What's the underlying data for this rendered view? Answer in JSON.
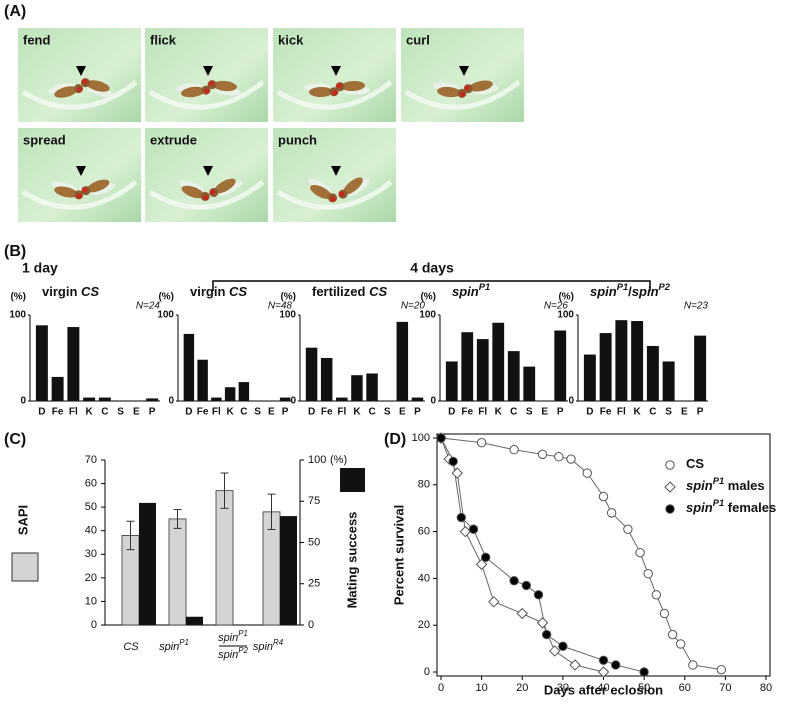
{
  "panel_a": {
    "label": "(A)",
    "photos": [
      "fend",
      "flick",
      "kick",
      "curl",
      "spread",
      "extrude",
      "punch"
    ]
  },
  "panel_b": {
    "label": "(B)",
    "groups": [
      "1 day",
      "4 days"
    ]
  },
  "panel_c": {
    "label": "(C)"
  },
  "panel_d": {
    "label": "(D)"
  },
  "chart_data": [
    {
      "type": "bar",
      "title": "virgin CS",
      "n_label": "N=24",
      "ylabel": "(%)",
      "categories": [
        "D",
        "Fe",
        "Fl",
        "K",
        "C",
        "S",
        "E",
        "P"
      ],
      "values": [
        88,
        28,
        86,
        4,
        4,
        0,
        0,
        3
      ],
      "color": "#111111",
      "ylim": [
        0,
        100
      ],
      "yticks": [
        0,
        100
      ]
    },
    {
      "type": "bar",
      "title": "virgin CS",
      "n_label": "N=48",
      "ylabel": "(%)",
      "categories": [
        "D",
        "Fe",
        "Fl",
        "K",
        "C",
        "S",
        "E",
        "P"
      ],
      "values": [
        78,
        48,
        4,
        16,
        22,
        0,
        0,
        4
      ],
      "color": "#111111",
      "ylim": [
        0,
        100
      ],
      "yticks": [
        0,
        100
      ]
    },
    {
      "type": "bar",
      "title": "fertilized CS",
      "n_label": "N=20",
      "ylabel": "(%)",
      "categories": [
        "D",
        "Fe",
        "Fl",
        "K",
        "C",
        "S",
        "E",
        "P"
      ],
      "values": [
        62,
        50,
        4,
        30,
        32,
        0,
        92,
        4
      ],
      "color": "#111111",
      "ylim": [
        0,
        100
      ],
      "yticks": [
        0,
        100
      ]
    },
    {
      "type": "bar",
      "title": "spinP1",
      "n_label": "N=26",
      "ylabel": "(%)",
      "categories": [
        "D",
        "Fe",
        "Fl",
        "K",
        "C",
        "S",
        "E",
        "P"
      ],
      "values": [
        46,
        80,
        72,
        91,
        58,
        40,
        0,
        82
      ],
      "color": "#111111",
      "ylim": [
        0,
        100
      ],
      "yticks": [
        0,
        100
      ]
    },
    {
      "type": "bar",
      "title": "spinP1/spinP2",
      "n_label": "N=23",
      "ylabel": "(%)",
      "categories": [
        "D",
        "Fe",
        "Fl",
        "K",
        "C",
        "S",
        "E",
        "P"
      ],
      "values": [
        54,
        79,
        94,
        93,
        64,
        46,
        0,
        76
      ],
      "color": "#111111",
      "ylim": [
        0,
        100
      ],
      "yticks": [
        0,
        100
      ]
    },
    {
      "type": "grouped_bar",
      "categories": [
        "CS",
        "spinP1",
        [
          "spinP1",
          "spinP2"
        ],
        "spinR4"
      ],
      "series": [
        {
          "name": "SAPI",
          "color": "#d4d4d4",
          "values": [
            38,
            45,
            57,
            48
          ],
          "errors": [
            6,
            4,
            7.5,
            7.5
          ]
        },
        {
          "name": "Mating success",
          "color": "#111111",
          "values": [
            74,
            5,
            0,
            66
          ],
          "axis": "y2"
        }
      ],
      "ylim": [
        0,
        70
      ],
      "yticks": [
        0,
        10,
        20,
        30,
        40,
        50,
        60,
        70
      ],
      "y2lim": [
        0,
        100
      ],
      "y2ticks": [
        0,
        25,
        50,
        75,
        100
      ],
      "y2unit": "(%)"
    },
    {
      "type": "line",
      "xlabel": "Days after eclosion",
      "ylabel": "Percent survival",
      "xlim": [
        0,
        80
      ],
      "xticks": [
        0,
        10,
        20,
        30,
        40,
        50,
        60,
        70,
        80
      ],
      "ylim": [
        0,
        100
      ],
      "yticks": [
        0,
        20,
        40,
        60,
        80,
        100
      ],
      "series": [
        {
          "name": "CS",
          "color": "#666666",
          "marker": "circle",
          "fill": "#ffffff",
          "x": [
            0,
            10,
            18,
            25,
            29,
            32,
            36,
            40,
            42,
            46,
            49,
            51,
            53,
            55,
            57,
            59,
            62,
            69
          ],
          "values": [
            100,
            98,
            95,
            93,
            92,
            91,
            85,
            75,
            68,
            61,
            51,
            42,
            33,
            25,
            16,
            12,
            3,
            1
          ]
        },
        {
          "name": "spinP1 males",
          "color": "#666666",
          "marker": "diamond",
          "fill": "#ffffff",
          "x": [
            0,
            2,
            4,
            6,
            10,
            13,
            20,
            25,
            28,
            33,
            40
          ],
          "values": [
            100,
            91,
            85,
            60,
            46,
            30,
            25,
            21,
            9,
            3,
            0
          ]
        },
        {
          "name": "spinP1 females",
          "color": "#666666",
          "marker": "circle",
          "fill": "#000000",
          "x": [
            0,
            3,
            5,
            8,
            11,
            18,
            21,
            24,
            26,
            30,
            40,
            43,
            50
          ],
          "values": [
            100,
            90,
            66,
            61,
            49,
            39,
            37,
            33,
            16,
            11,
            5,
            3,
            0
          ]
        }
      ]
    }
  ]
}
